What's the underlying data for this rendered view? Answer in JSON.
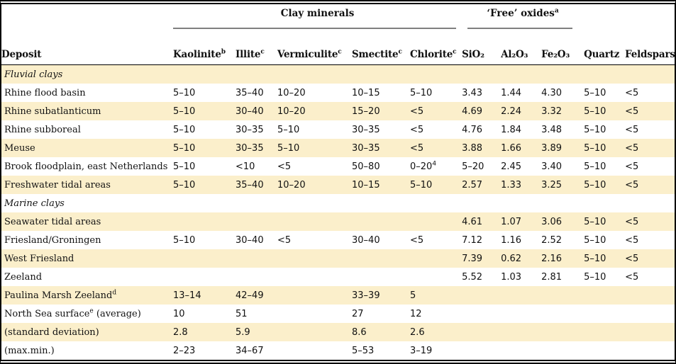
{
  "colors": {
    "stripe": "#FBEFCB",
    "spanner_rule": "#808080",
    "border": "#000000"
  },
  "table": {
    "spanners": [
      {
        "label": "Clay minerals",
        "sup": ""
      },
      {
        "label": "‘Free’ oxides",
        "sup": "a"
      }
    ],
    "columns": [
      {
        "key": "deposit",
        "label": "Deposit",
        "sup": ""
      },
      {
        "key": "kaolinite",
        "label": "Kaolinite",
        "sup": "b"
      },
      {
        "key": "illite",
        "label": "Illite",
        "sup": "c"
      },
      {
        "key": "vermiculite",
        "label": "Vermiculite",
        "sup": "c"
      },
      {
        "key": "smectite",
        "label": "Smectite",
        "sup": "c"
      },
      {
        "key": "chlorite",
        "label": "Chlorite",
        "sup": "c"
      },
      {
        "key": "sio2",
        "label": "SiO₂",
        "sup": ""
      },
      {
        "key": "al2o3",
        "label": "Al₂O₃",
        "sup": ""
      },
      {
        "key": "fe2o3",
        "label": "Fe₂O₃",
        "sup": ""
      },
      {
        "key": "quartz",
        "label": "Quartz",
        "sup": ""
      },
      {
        "key": "feldspars",
        "label": "Feldspars",
        "sup": ""
      }
    ],
    "rows": [
      {
        "type": "section",
        "deposit": {
          "text": "Fluvial clays",
          "sup": "",
          "suffix": ""
        },
        "cells": [
          "",
          "",
          "",
          "",
          "",
          "",
          "",
          "",
          "",
          ""
        ]
      },
      {
        "type": "data",
        "deposit": {
          "text": "Rhine flood basin",
          "sup": "",
          "suffix": ""
        },
        "cells": [
          "5–10",
          "35–40",
          "10–20",
          "10–15",
          "5–10",
          "3.43",
          "1.44",
          "4.30",
          "5–10",
          "<5"
        ]
      },
      {
        "type": "data",
        "deposit": {
          "text": "Rhine subatlanticum",
          "sup": "",
          "suffix": ""
        },
        "cells": [
          "5–10",
          "30–40",
          "10–20",
          "15–20",
          "<5",
          "4.69",
          "2.24",
          "3.32",
          "5–10",
          "<5"
        ]
      },
      {
        "type": "data",
        "deposit": {
          "text": "Rhine subboreal",
          "sup": "",
          "suffix": ""
        },
        "cells": [
          "5–10",
          "30–35",
          "5–10",
          "30–35",
          "<5",
          "4.76",
          "1.84",
          "3.48",
          "5–10",
          "<5"
        ]
      },
      {
        "type": "data",
        "deposit": {
          "text": "Meuse",
          "sup": "",
          "suffix": ""
        },
        "cells": [
          "5–10",
          "30–35",
          "5–10",
          "30–35",
          "<5",
          "3.88",
          "1.66",
          "3.89",
          "5–10",
          "<5"
        ]
      },
      {
        "type": "data",
        "deposit": {
          "text": "Brook floodplain, east Netherlands",
          "sup": "",
          "suffix": ""
        },
        "cells": [
          "5–10",
          "<10",
          "<5",
          "50–80",
          {
            "v": "0–20",
            "sup": "4"
          },
          "5–20",
          "2.45",
          "3.40",
          "5–10",
          "<5"
        ]
      },
      {
        "type": "data",
        "deposit": {
          "text": "Freshwater tidal areas",
          "sup": "",
          "suffix": ""
        },
        "cells": [
          "5–10",
          "35–40",
          "10–20",
          "10–15",
          "5–10",
          "2.57",
          "1.33",
          "3.25",
          "5–10",
          "<5"
        ]
      },
      {
        "type": "section",
        "deposit": {
          "text": "Marine clays",
          "sup": "",
          "suffix": ""
        },
        "cells": [
          "",
          "",
          "",
          "",
          "",
          "",
          "",
          "",
          "",
          ""
        ]
      },
      {
        "type": "data",
        "deposit": {
          "text": "Seawater tidal areas",
          "sup": "",
          "suffix": ""
        },
        "cells": [
          "",
          "",
          "",
          "",
          "",
          "4.61",
          "1.07",
          "3.06",
          "5–10",
          "<5"
        ]
      },
      {
        "type": "data",
        "deposit": {
          "text": "Friesland/Groningen",
          "sup": "",
          "suffix": ""
        },
        "cells": [
          "5–10",
          "30–40",
          "<5",
          "30–40",
          "<5",
          "7.12",
          "1.16",
          "2.52",
          "5–10",
          "<5"
        ]
      },
      {
        "type": "data",
        "deposit": {
          "text": "West Friesland",
          "sup": "",
          "suffix": ""
        },
        "cells": [
          "",
          "",
          "",
          "",
          "",
          "7.39",
          "0.62",
          "2.16",
          "5–10",
          "<5"
        ]
      },
      {
        "type": "data",
        "deposit": {
          "text": "Zeeland",
          "sup": "",
          "suffix": ""
        },
        "cells": [
          "",
          "",
          "",
          "",
          "",
          "5.52",
          "1.03",
          "2.81",
          "5–10",
          "<5"
        ]
      },
      {
        "type": "data",
        "deposit": {
          "text": "Paulina Marsh Zeeland",
          "sup": "d",
          "suffix": ""
        },
        "cells": [
          "13–14",
          "42–49",
          "",
          "33–39",
          "5",
          "",
          "",
          "",
          "",
          ""
        ]
      },
      {
        "type": "data",
        "deposit": {
          "text": "North Sea surface",
          "sup": "e",
          "suffix": " (average)"
        },
        "cells": [
          "10",
          "51",
          "",
          "27",
          "12",
          "",
          "",
          "",
          "",
          ""
        ]
      },
      {
        "type": "data",
        "deposit": {
          "text": "(standard deviation)",
          "sup": "",
          "suffix": ""
        },
        "cells": [
          "2.8",
          "5.9",
          "",
          "8.6",
          "2.6",
          "",
          "",
          "",
          "",
          ""
        ]
      },
      {
        "type": "data",
        "deposit": {
          "text": "(max.min.)",
          "sup": "",
          "suffix": ""
        },
        "cells": [
          "2–23",
          "34–67",
          "",
          "5–53",
          "3–19",
          "",
          "",
          "",
          "",
          ""
        ]
      }
    ]
  }
}
